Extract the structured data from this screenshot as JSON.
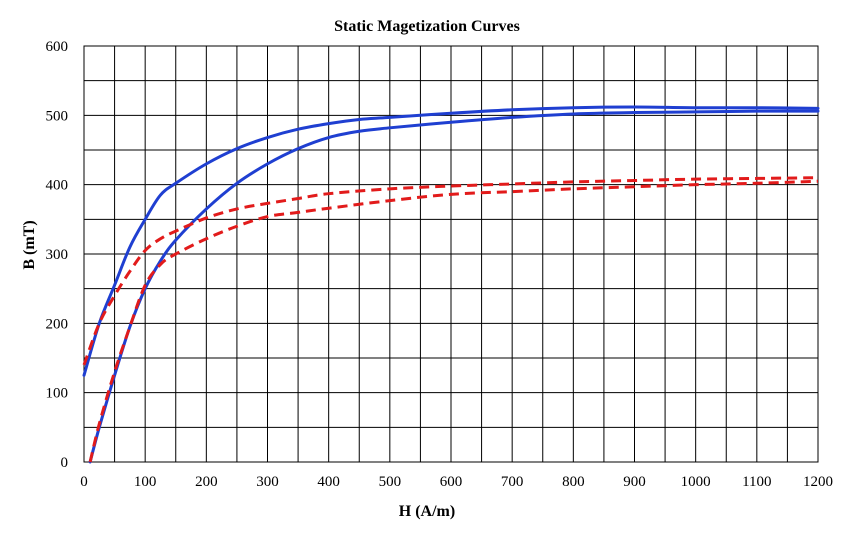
{
  "chart_data": {
    "type": "line",
    "title": "Static Magetization Curves",
    "xlabel": "H (A/m)",
    "ylabel": "B (mT)",
    "xlim": [
      0,
      1200
    ],
    "ylim": [
      0,
      600
    ],
    "x_ticks": [
      0,
      100,
      200,
      300,
      400,
      500,
      600,
      700,
      800,
      900,
      1000,
      1100,
      1200
    ],
    "y_ticks": [
      0,
      100,
      200,
      300,
      400,
      500,
      600
    ],
    "grid": true,
    "grid_x_step": 50,
    "grid_y_step": 50,
    "series": [
      {
        "color": "#1f3fd1",
        "dash": "solid",
        "x": [
          0,
          25,
          50,
          75,
          100,
          125,
          150,
          200,
          250,
          300,
          350,
          400,
          450,
          500,
          600,
          700,
          800,
          900,
          1000,
          1100,
          1200
        ],
        "values": [
          125,
          200,
          255,
          310,
          350,
          385,
          402,
          430,
          452,
          468,
          480,
          488,
          494,
          497,
          503,
          508,
          511,
          512,
          511,
          511,
          510
        ]
      },
      {
        "color": "#1f3fd1",
        "dash": "solid",
        "x": [
          10,
          25,
          50,
          75,
          100,
          125,
          150,
          200,
          250,
          300,
          350,
          400,
          450,
          500,
          600,
          700,
          800,
          900,
          1000,
          1100,
          1200
        ],
        "values": [
          0,
          50,
          125,
          195,
          250,
          290,
          320,
          365,
          402,
          430,
          452,
          468,
          477,
          482,
          490,
          497,
          502,
          504,
          505,
          506,
          506
        ]
      },
      {
        "color": "#e21b1b",
        "dash": "dashed",
        "x": [
          0,
          25,
          50,
          75,
          100,
          125,
          150,
          200,
          250,
          300,
          350,
          400,
          500,
          600,
          700,
          800,
          900,
          1000,
          1100,
          1200
        ],
        "values": [
          140,
          200,
          240,
          275,
          305,
          322,
          333,
          352,
          365,
          373,
          380,
          387,
          394,
          398,
          401,
          404,
          406,
          408,
          409,
          410
        ]
      },
      {
        "color": "#e21b1b",
        "dash": "dashed",
        "x": [
          10,
          25,
          50,
          75,
          100,
          125,
          150,
          200,
          250,
          300,
          350,
          400,
          500,
          600,
          700,
          800,
          900,
          1000,
          1100,
          1200
        ],
        "values": [
          0,
          55,
          130,
          195,
          255,
          285,
          300,
          322,
          340,
          354,
          360,
          366,
          377,
          386,
          390,
          394,
          397,
          400,
          402,
          405
        ]
      }
    ]
  }
}
